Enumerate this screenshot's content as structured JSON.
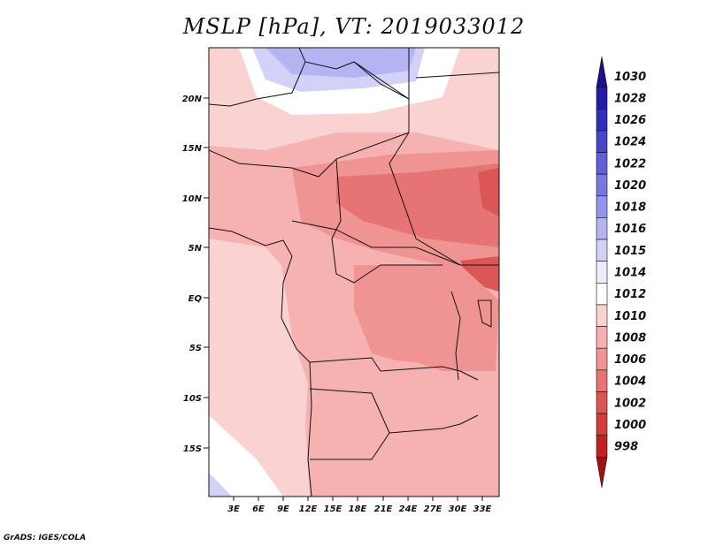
{
  "title": "MSLP [hPa], VT: 2019033012",
  "credit": "GrADS: IGES/COLA",
  "lat_labels": [
    "20N",
    "15N",
    "10N",
    "5N",
    "EQ",
    "5S",
    "10S",
    "15S"
  ],
  "lon_labels": [
    "3E",
    "6E",
    "9E",
    "12E",
    "15E",
    "18E",
    "21E",
    "24E",
    "27E",
    "30E",
    "33E"
  ],
  "colorbar": {
    "labels": [
      "1030",
      "1028",
      "1026",
      "1024",
      "1022",
      "1020",
      "1018",
      "1016",
      "1015",
      "1014",
      "1012",
      "1010",
      "1008",
      "1006",
      "1004",
      "1002",
      "1000",
      "998"
    ],
    "colors": [
      "#1a0f8f",
      "#241ca8",
      "#2f2fba",
      "#4646c8",
      "#5f5fd6",
      "#7878e1",
      "#9494ea",
      "#b4b4f2",
      "#d2d2f8",
      "#ececfc",
      "#ffffff",
      "#fbd2d2",
      "#f6b1b1",
      "#ef9393",
      "#e67474",
      "#dd5656",
      "#d13b3b",
      "#bd2323",
      "#a11212"
    ]
  }
}
